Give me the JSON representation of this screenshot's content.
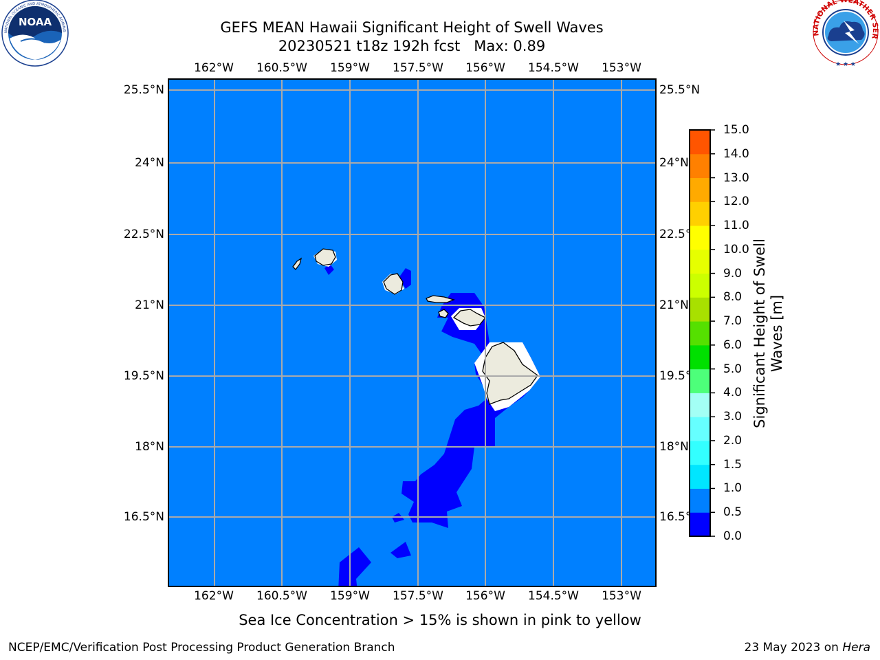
{
  "header": {
    "title": "GEFS MEAN Hawaii Significant Height of Swell Waves",
    "subtitle": "20230521 t18z 192h fcst",
    "max_label": "Max: 0.89"
  },
  "logos": {
    "left": "NOAA",
    "left_ring_text": "NATIONAL OCEANIC AND ATMOSPHERIC ADMINISTRATION · U.S. DEPARTMENT OF COMMERCE",
    "right_ring_text": "NATIONAL WEATHER SERVICE"
  },
  "map": {
    "lon_labels": [
      "162°W",
      "160.5°W",
      "159°W",
      "157.5°W",
      "156°W",
      "154.5°W",
      "153°W"
    ],
    "lat_labels": [
      "25.5°N",
      "24°N",
      "22.5°N",
      "21°N",
      "19.5°N",
      "18°N",
      "16.5°N"
    ],
    "ocean_color": "#0080ff",
    "low_swell_color": "#0000ff",
    "land_color": "#ecebde",
    "grid": "on"
  },
  "colorbar": {
    "title": "Significant Height of Swell Waves [m]",
    "ticks": [
      "0.0",
      "0.5",
      "1.0",
      "1.5",
      "2.0",
      "3.0",
      "4.0",
      "5.0",
      "6.0",
      "7.0",
      "8.0",
      "9.0",
      "10.0",
      "11.0",
      "12.0",
      "13.0",
      "14.0",
      "15.0"
    ],
    "colors": [
      "#0000ff",
      "#0080ff",
      "#00e6ff",
      "#33ffff",
      "#66ffff",
      "#a3fff5",
      "#4dff7a",
      "#00e000",
      "#55e000",
      "#a8e000",
      "#ccff00",
      "#e6ff00",
      "#ffff00",
      "#ffd000",
      "#ffaa00",
      "#ff8000",
      "#ff5500",
      "#ff2a00",
      "#ff0000"
    ]
  },
  "note": "Sea Ice Concentration > 15% is shown in pink to yellow",
  "footer": {
    "left": "NCEP/EMC/Verification Post Processing Product Generation Branch",
    "date": "23 May 2023 on ",
    "machine": "Hera"
  }
}
